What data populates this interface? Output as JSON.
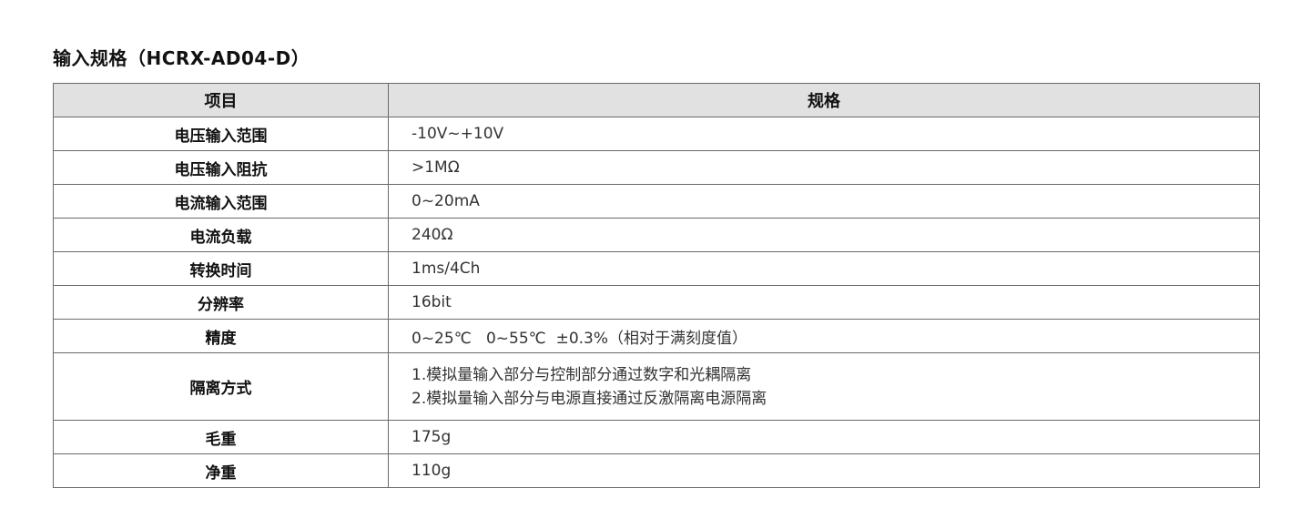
{
  "title": "输入规格（HCRX-AD04-D）",
  "table": {
    "headers": [
      "项目",
      "规格"
    ],
    "rows": [
      {
        "item": "电压输入范围",
        "spec": [
          "-10V~+10V"
        ]
      },
      {
        "item": "电压输入阻抗",
        "spec": [
          ">1MΩ"
        ]
      },
      {
        "item": "电流输入范围",
        "spec": [
          "0~20mA"
        ]
      },
      {
        "item": "电流负载",
        "spec": [
          "240Ω"
        ]
      },
      {
        "item": "转换时间",
        "spec": [
          "1ms/4Ch"
        ]
      },
      {
        "item": "分辨率",
        "spec": [
          "16bit"
        ]
      },
      {
        "item": "精度",
        "spec": [
          "0~25℃   0~55℃  ±0.3%（相对于满刻度值）"
        ]
      },
      {
        "item": "隔离方式",
        "spec": [
          "1.模拟量输入部分与控制部分通过数字和光耦隔离",
          "2.模拟量输入部分与电源直接通过反激隔离电源隔离"
        ]
      },
      {
        "item": "毛重",
        "spec": [
          "175g"
        ]
      },
      {
        "item": "净重",
        "spec": [
          "110g"
        ]
      }
    ]
  }
}
